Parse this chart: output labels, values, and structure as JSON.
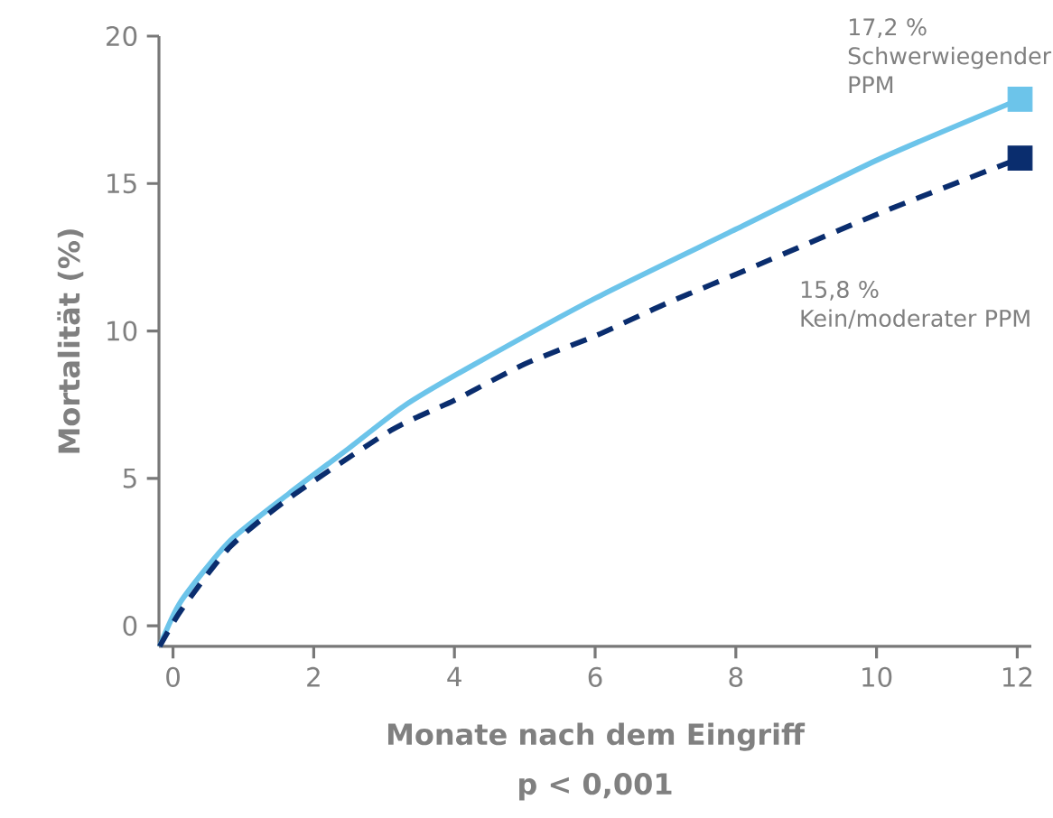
{
  "chart_data": {
    "type": "line",
    "xlabel": "Monate nach dem Eingriff",
    "ylabel": "Mortalität (%)",
    "xlim": [
      -0.2,
      12.2
    ],
    "ylim": [
      -0.7,
      20
    ],
    "xticks": [
      0,
      2,
      4,
      6,
      8,
      10,
      12
    ],
    "yticks": [
      0,
      5,
      10,
      15,
      20
    ],
    "series": [
      {
        "color": "#6cc4ea",
        "line_style": "solid",
        "x": [
          -0.19,
          0.11,
          0.8,
          1.65,
          2.5,
          3.28,
          4.22,
          6.01,
          8.02,
          10.03,
          12.04
        ],
        "values": [
          -0.7,
          0.82,
          2.86,
          4.49,
          6.02,
          7.45,
          8.78,
          11.12,
          13.47,
          15.82,
          17.86
        ]
      },
      {
        "color": "#0a2d6e",
        "line_style": "dashed",
        "x": [
          -0.19,
          0.11,
          0.8,
          1.65,
          3.1,
          4.0,
          5.0,
          6.01,
          7.0,
          8.02,
          10.03,
          12.04
        ],
        "values": [
          -0.7,
          0.51,
          2.65,
          4.33,
          6.63,
          7.65,
          8.88,
          9.84,
          10.92,
          11.94,
          13.98,
          15.86
        ]
      },
      {
        "type": "scatter",
        "marker": "square",
        "color": "#6cc4ea",
        "x": [
          12.04
        ],
        "values": [
          17.86
        ]
      },
      {
        "type": "scatter",
        "marker": "square",
        "color": "#0a2d6e",
        "x": [
          12.04
        ],
        "values": [
          15.86
        ]
      }
    ],
    "annotations": [
      "17,2 % Schwerwiegender PPM",
      "15,8 % Kein/moderater PPM",
      "p < 0,001"
    ]
  }
}
